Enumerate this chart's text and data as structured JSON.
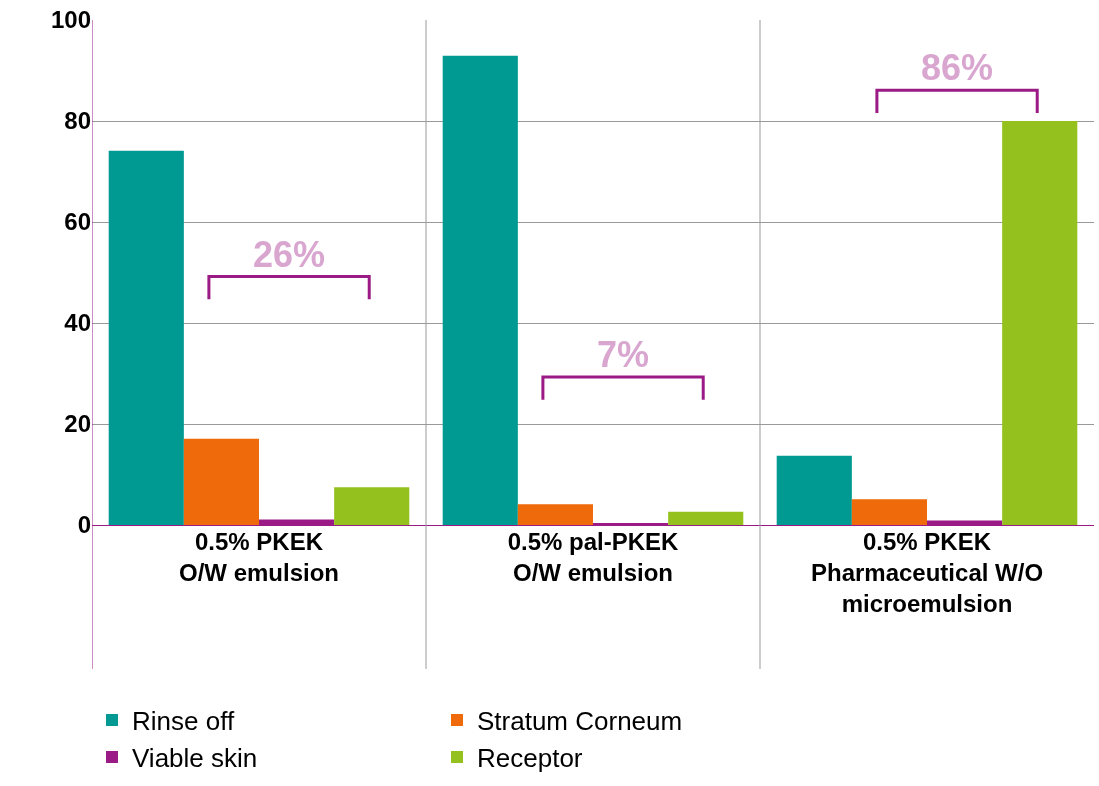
{
  "chart_data": {
    "type": "bar",
    "categories": [
      "0.5% PKEK\nO/W emulsion",
      "0.5% pal-PKEK\nO/W emulsion",
      "0.5% PKEK\nPharmaceutical W/O\nmicroemulsion"
    ],
    "series": [
      {
        "name": "Rinse off",
        "color": "#009a93",
        "values": [
          74.1,
          92.9,
          13.7
        ]
      },
      {
        "name": "Stratum Corneum",
        "color": "#ee6a0a",
        "values": [
          17.1,
          4.1,
          5.1
        ]
      },
      {
        "name": "Viable skin",
        "color": "#9b1b86",
        "values": [
          1.1,
          0.2,
          0.9
        ]
      },
      {
        "name": "Receptor",
        "color": "#95c11f",
        "values": [
          7.5,
          2.6,
          80
        ]
      }
    ],
    "ylim": [
      0,
      100
    ],
    "yticks": [
      0,
      20,
      40,
      60,
      80,
      100
    ],
    "grid": true,
    "legend": "bottom",
    "annotations": [
      "26%",
      "7%",
      "86%"
    ]
  }
}
